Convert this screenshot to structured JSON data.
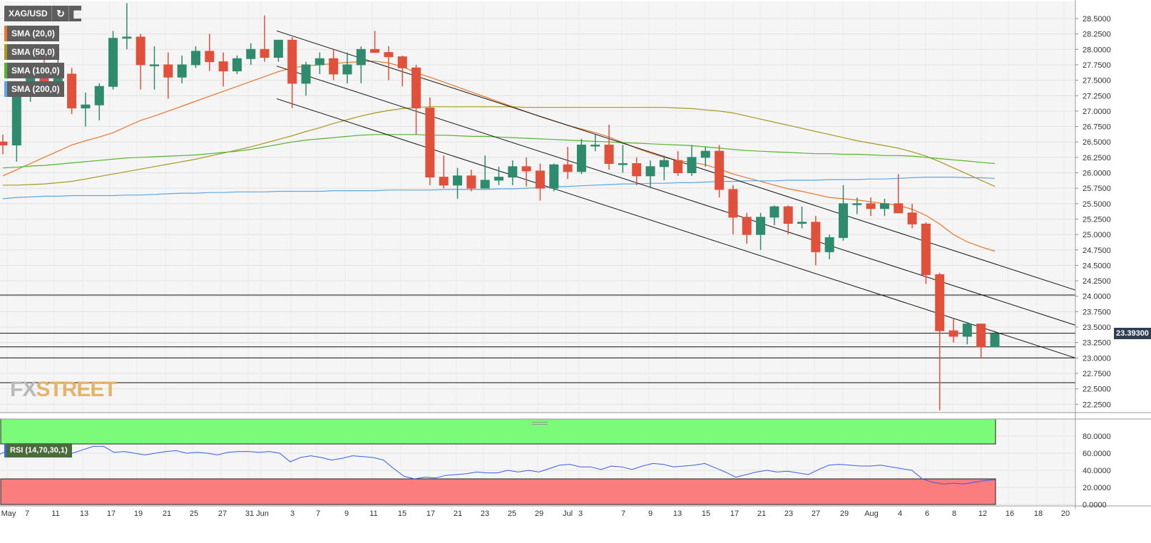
{
  "toolbar": {
    "symbol": "XAG/USD",
    "refresh_icon": "refresh-icon",
    "calendar_icon": "calendar-icon"
  },
  "indicators": [
    {
      "label": "SMA (20,0)",
      "color": "#e8752a"
    },
    {
      "label": "SMA (50,0)",
      "color": "#a59a1e"
    },
    {
      "label": "SMA (100,0)",
      "color": "#55b32e"
    },
    {
      "label": "SMA (200,0)",
      "color": "#5aa6e6"
    }
  ],
  "last_price": "23.39300",
  "brand": {
    "part1": "FX",
    "part2": "STREET"
  },
  "rsi": {
    "label": "RSI (14,70,30,1)",
    "overbought": 70,
    "oversold": 30
  },
  "colors": {
    "up": "#2e8b6e",
    "down": "#e0503a",
    "rsi_line": "#3b5de7",
    "overbought_fill": "#7cfa79",
    "oversold_fill": "#fb7d7d"
  },
  "chart_data": [
    {
      "type": "candlestick",
      "title": "XAG/USD",
      "y_axis_ticks": [
        "28.5000",
        "28.2500",
        "28.0000",
        "27.7500",
        "27.5000",
        "27.2500",
        "27.0000",
        "26.7500",
        "26.5000",
        "26.2500",
        "26.0000",
        "25.7500",
        "25.5000",
        "25.2500",
        "25.0000",
        "24.7500",
        "24.5000",
        "24.2500",
        "24.0000",
        "23.7500",
        "23.5000",
        "23.2500",
        "23.0000",
        "22.7500",
        "22.5000",
        "22.2500"
      ],
      "ylim": [
        22.15,
        28.78
      ],
      "x_axis_ticks": [
        "May",
        "7",
        "11",
        "13",
        "17",
        "19",
        "21",
        "25",
        "27",
        "31",
        "Jun",
        "3",
        "7",
        "9",
        "11",
        "15",
        "17",
        "21",
        "23",
        "25",
        "29",
        "Jul",
        "3",
        "7",
        "9",
        "13",
        "15",
        "17",
        "21",
        "23",
        "27",
        "29",
        "Aug",
        "4",
        "6",
        "8",
        "12",
        "16",
        "18",
        "20"
      ],
      "grid": true,
      "horizontal_levels": [
        24.02,
        23.4,
        23.18,
        23.0,
        22.6
      ],
      "channel_lines": [
        {
          "from": [
            "Jun 3",
            28.3
          ],
          "to": [
            "Aug 20",
            24.1
          ]
        },
        {
          "from": [
            "Jun 3",
            27.73
          ],
          "to": [
            "Aug 20",
            23.53
          ]
        },
        {
          "from": [
            "Jun 3",
            27.2
          ],
          "to": [
            "Aug 20",
            23.0
          ]
        }
      ],
      "candles": [
        {
          "o": 26.5,
          "h": 26.62,
          "l": 26.3,
          "c": 26.45
        },
        {
          "o": 26.45,
          "h": 27.45,
          "l": 26.18,
          "c": 27.3
        },
        {
          "o": 27.3,
          "h": 27.65,
          "l": 27.15,
          "c": 27.55
        },
        {
          "o": 27.55,
          "h": 27.85,
          "l": 27.25,
          "c": 27.35
        },
        {
          "o": 27.35,
          "h": 27.85,
          "l": 27.3,
          "c": 27.6
        },
        {
          "o": 27.6,
          "h": 27.7,
          "l": 26.95,
          "c": 27.05
        },
        {
          "o": 27.05,
          "h": 27.3,
          "l": 26.75,
          "c": 27.1
        },
        {
          "o": 27.1,
          "h": 27.45,
          "l": 26.85,
          "c": 27.4
        },
        {
          "o": 27.4,
          "h": 28.3,
          "l": 27.35,
          "c": 28.18
        },
        {
          "o": 28.18,
          "h": 28.75,
          "l": 28.0,
          "c": 28.2
        },
        {
          "o": 28.2,
          "h": 28.25,
          "l": 27.35,
          "c": 27.75
        },
        {
          "o": 27.75,
          "h": 28.05,
          "l": 27.35,
          "c": 27.75
        },
        {
          "o": 27.75,
          "h": 27.95,
          "l": 27.2,
          "c": 27.55
        },
        {
          "o": 27.55,
          "h": 27.9,
          "l": 27.45,
          "c": 27.75
        },
        {
          "o": 27.75,
          "h": 28.05,
          "l": 27.7,
          "c": 27.97
        },
        {
          "o": 27.97,
          "h": 28.25,
          "l": 27.65,
          "c": 27.8
        },
        {
          "o": 27.8,
          "h": 27.95,
          "l": 27.4,
          "c": 27.65
        },
        {
          "o": 27.65,
          "h": 27.9,
          "l": 27.6,
          "c": 27.85
        },
        {
          "o": 27.85,
          "h": 28.1,
          "l": 27.75,
          "c": 28.0
        },
        {
          "o": 28.0,
          "h": 28.55,
          "l": 27.8,
          "c": 27.87
        },
        {
          "o": 27.87,
          "h": 28.15,
          "l": 27.8,
          "c": 28.15
        },
        {
          "o": 28.15,
          "h": 28.2,
          "l": 27.05,
          "c": 27.45
        },
        {
          "o": 27.45,
          "h": 27.8,
          "l": 27.25,
          "c": 27.75
        },
        {
          "o": 27.75,
          "h": 27.95,
          "l": 27.6,
          "c": 27.85
        },
        {
          "o": 27.85,
          "h": 28.0,
          "l": 27.5,
          "c": 27.6
        },
        {
          "o": 27.6,
          "h": 27.95,
          "l": 27.45,
          "c": 27.75
        },
        {
          "o": 27.75,
          "h": 28.05,
          "l": 27.45,
          "c": 28.0
        },
        {
          "o": 28.0,
          "h": 28.3,
          "l": 27.95,
          "c": 27.95
        },
        {
          "o": 27.95,
          "h": 28.05,
          "l": 27.5,
          "c": 27.88
        },
        {
          "o": 27.88,
          "h": 27.9,
          "l": 27.4,
          "c": 27.7
        },
        {
          "o": 27.7,
          "h": 27.75,
          "l": 26.62,
          "c": 27.05
        },
        {
          "o": 27.05,
          "h": 27.22,
          "l": 25.8,
          "c": 25.93
        },
        {
          "o": 25.93,
          "h": 26.28,
          "l": 25.75,
          "c": 25.8
        },
        {
          "o": 25.8,
          "h": 26.08,
          "l": 25.58,
          "c": 25.95
        },
        {
          "o": 25.95,
          "h": 26.05,
          "l": 25.7,
          "c": 25.75
        },
        {
          "o": 25.75,
          "h": 26.28,
          "l": 25.75,
          "c": 25.88
        },
        {
          "o": 25.88,
          "h": 26.1,
          "l": 25.8,
          "c": 25.93
        },
        {
          "o": 25.93,
          "h": 26.2,
          "l": 25.8,
          "c": 26.1
        },
        {
          "o": 26.1,
          "h": 26.25,
          "l": 25.78,
          "c": 26.03
        },
        {
          "o": 26.03,
          "h": 26.15,
          "l": 25.55,
          "c": 25.75
        },
        {
          "o": 25.75,
          "h": 26.15,
          "l": 25.7,
          "c": 26.13
        },
        {
          "o": 26.13,
          "h": 26.42,
          "l": 25.9,
          "c": 26.02
        },
        {
          "o": 26.02,
          "h": 26.55,
          "l": 25.98,
          "c": 26.45
        },
        {
          "o": 26.45,
          "h": 26.62,
          "l": 26.35,
          "c": 26.45
        },
        {
          "o": 26.45,
          "h": 26.78,
          "l": 26.05,
          "c": 26.15
        },
        {
          "o": 26.15,
          "h": 26.45,
          "l": 26.0,
          "c": 26.15
        },
        {
          "o": 26.15,
          "h": 26.25,
          "l": 25.8,
          "c": 25.95
        },
        {
          "o": 25.95,
          "h": 26.2,
          "l": 25.75,
          "c": 26.1
        },
        {
          "o": 26.1,
          "h": 26.28,
          "l": 25.88,
          "c": 26.2
        },
        {
          "o": 26.2,
          "h": 26.35,
          "l": 25.95,
          "c": 26.0
        },
        {
          "o": 26.0,
          "h": 26.45,
          "l": 25.95,
          "c": 26.25
        },
        {
          "o": 26.25,
          "h": 26.42,
          "l": 26.1,
          "c": 26.35
        },
        {
          "o": 26.35,
          "h": 26.45,
          "l": 25.6,
          "c": 25.73
        },
        {
          "o": 25.73,
          "h": 25.8,
          "l": 25.0,
          "c": 25.28
        },
        {
          "o": 25.28,
          "h": 25.35,
          "l": 24.85,
          "c": 25.0
        },
        {
          "o": 25.0,
          "h": 25.35,
          "l": 24.75,
          "c": 25.28
        },
        {
          "o": 25.28,
          "h": 25.47,
          "l": 25.15,
          "c": 25.45
        },
        {
          "o": 25.45,
          "h": 25.47,
          "l": 25.0,
          "c": 25.18
        },
        {
          "o": 25.18,
          "h": 25.45,
          "l": 25.1,
          "c": 25.2
        },
        {
          "o": 25.2,
          "h": 25.3,
          "l": 24.5,
          "c": 24.72
        },
        {
          "o": 24.72,
          "h": 25.0,
          "l": 24.6,
          "c": 24.95
        },
        {
          "o": 24.95,
          "h": 25.8,
          "l": 24.9,
          "c": 25.5
        },
        {
          "o": 25.5,
          "h": 25.6,
          "l": 25.33,
          "c": 25.5
        },
        {
          "o": 25.5,
          "h": 25.6,
          "l": 25.3,
          "c": 25.42
        },
        {
          "o": 25.42,
          "h": 25.58,
          "l": 25.3,
          "c": 25.5
        },
        {
          "o": 25.5,
          "h": 25.98,
          "l": 25.35,
          "c": 25.35
        },
        {
          "o": 25.35,
          "h": 25.5,
          "l": 25.1,
          "c": 25.17
        },
        {
          "o": 25.17,
          "h": 25.2,
          "l": 24.2,
          "c": 24.35
        },
        {
          "o": 24.35,
          "h": 24.38,
          "l": 22.15,
          "c": 23.44
        },
        {
          "o": 23.44,
          "h": 23.65,
          "l": 23.25,
          "c": 23.35
        },
        {
          "o": 23.35,
          "h": 23.58,
          "l": 23.22,
          "c": 23.55
        },
        {
          "o": 23.55,
          "h": 23.55,
          "l": 23.0,
          "c": 23.18
        },
        {
          "o": 23.18,
          "h": 23.44,
          "l": 23.18,
          "c": 23.39
        }
      ],
      "sma": {
        "SMA (20,0)": [
          25.95,
          26.05,
          26.15,
          26.25,
          26.35,
          26.45,
          26.52,
          26.58,
          26.65,
          26.75,
          26.85,
          26.92,
          27.0,
          27.08,
          27.16,
          27.24,
          27.32,
          27.4,
          27.48,
          27.56,
          27.64,
          27.7,
          27.73,
          27.75,
          27.77,
          27.79,
          27.8,
          27.81,
          27.78,
          27.72,
          27.62,
          27.55,
          27.47,
          27.39,
          27.31,
          27.23,
          27.15,
          27.07,
          26.99,
          26.91,
          26.84,
          26.77,
          26.71,
          26.65,
          26.58,
          26.49,
          26.4,
          26.32,
          26.25,
          26.2,
          26.17,
          26.13,
          26.06,
          25.98,
          25.92,
          25.86,
          25.8,
          25.74,
          25.7,
          25.65,
          25.6,
          25.58,
          25.56,
          25.53,
          25.5,
          25.47,
          25.41,
          25.31,
          25.17,
          25.0,
          24.88,
          24.8,
          24.73
        ],
        "SMA (50,0)": [
          25.8,
          25.8,
          25.81,
          25.82,
          25.84,
          25.86,
          25.9,
          25.94,
          25.98,
          26.02,
          26.06,
          26.1,
          26.14,
          26.18,
          26.22,
          26.27,
          26.32,
          26.37,
          26.42,
          26.48,
          26.54,
          26.6,
          26.67,
          26.73,
          26.8,
          26.86,
          26.92,
          26.97,
          27.01,
          27.04,
          27.06,
          27.07,
          27.07,
          27.07,
          27.07,
          27.07,
          27.07,
          27.07,
          27.06,
          27.06,
          27.06,
          27.06,
          27.06,
          27.06,
          27.06,
          27.06,
          27.06,
          27.06,
          27.06,
          27.05,
          27.04,
          27.02,
          27.0,
          26.97,
          26.92,
          26.87,
          26.82,
          26.77,
          26.72,
          26.67,
          26.62,
          26.57,
          26.52,
          26.48,
          26.44,
          26.4,
          26.34,
          26.27,
          26.18,
          26.08,
          25.98,
          25.88,
          25.78
        ],
        "SMA (100,0)": [
          26.08,
          26.09,
          26.11,
          26.12,
          26.14,
          26.16,
          26.18,
          26.2,
          26.22,
          26.24,
          26.25,
          26.26,
          26.27,
          26.28,
          26.29,
          26.31,
          26.33,
          26.35,
          26.38,
          26.42,
          26.46,
          26.5,
          26.53,
          26.55,
          26.57,
          26.59,
          26.61,
          26.62,
          26.62,
          26.62,
          26.62,
          26.61,
          26.61,
          26.6,
          26.59,
          26.59,
          26.58,
          26.57,
          26.56,
          26.55,
          26.54,
          26.53,
          26.52,
          26.51,
          26.5,
          26.49,
          26.48,
          26.47,
          26.46,
          26.45,
          26.44,
          26.42,
          26.4,
          26.38,
          26.36,
          26.35,
          26.34,
          26.33,
          26.32,
          26.31,
          26.31,
          26.3,
          26.3,
          26.29,
          26.28,
          26.28,
          26.27,
          26.25,
          26.23,
          26.21,
          26.19,
          26.17,
          26.15
        ],
        "SMA (200,0)": [
          25.58,
          25.6,
          25.61,
          25.62,
          25.62,
          25.63,
          25.63,
          25.63,
          25.63,
          25.64,
          25.64,
          25.65,
          25.66,
          25.67,
          25.67,
          25.68,
          25.68,
          25.69,
          25.69,
          25.69,
          25.7,
          25.7,
          25.7,
          25.7,
          25.71,
          25.71,
          25.71,
          25.71,
          25.72,
          25.72,
          25.72,
          25.72,
          25.73,
          25.73,
          25.73,
          25.73,
          25.74,
          25.74,
          25.75,
          25.76,
          25.77,
          25.78,
          25.79,
          25.8,
          25.81,
          25.82,
          25.82,
          25.83,
          25.83,
          25.84,
          25.84,
          25.85,
          25.86,
          25.86,
          25.87,
          25.87,
          25.87,
          25.88,
          25.88,
          25.88,
          25.89,
          25.89,
          25.89,
          25.9,
          25.9,
          25.91,
          25.92,
          25.93,
          25.93,
          25.93,
          25.92,
          25.92,
          25.91
        ]
      }
    },
    {
      "type": "line",
      "title": "RSI (14,70,30,1)",
      "y_axis_ticks": [
        "80.0000",
        "60.0000",
        "40.0000",
        "20.0000",
        "0.0000"
      ],
      "ylim": [
        0,
        100
      ],
      "grid": true,
      "bands": [
        {
          "from": 70,
          "to": 100,
          "label": "overbought"
        },
        {
          "from": 0,
          "to": 30,
          "label": "oversold"
        }
      ],
      "values": [
        59,
        64,
        66,
        64,
        67,
        58,
        58,
        60,
        64,
        68,
        68,
        61,
        62,
        60,
        58,
        60,
        62,
        63,
        60,
        61,
        60,
        58,
        61,
        62,
        62,
        61,
        62,
        60,
        50,
        55,
        57,
        55,
        52,
        54,
        57,
        56,
        55,
        52,
        42,
        33,
        30,
        32,
        31,
        34,
        35,
        36,
        38,
        37,
        37,
        40,
        38,
        40,
        38,
        42,
        46,
        47,
        44,
        44,
        41,
        45,
        44,
        41,
        45,
        48,
        47,
        44,
        45,
        46,
        48,
        43,
        38,
        32,
        35,
        38,
        40,
        38,
        39,
        37,
        35,
        41,
        46,
        47,
        46,
        45,
        45,
        46,
        44,
        42,
        40,
        30,
        26,
        24,
        25,
        24,
        26,
        28,
        29
      ],
      "last_values": [
        27,
        29,
        30
      ]
    }
  ]
}
